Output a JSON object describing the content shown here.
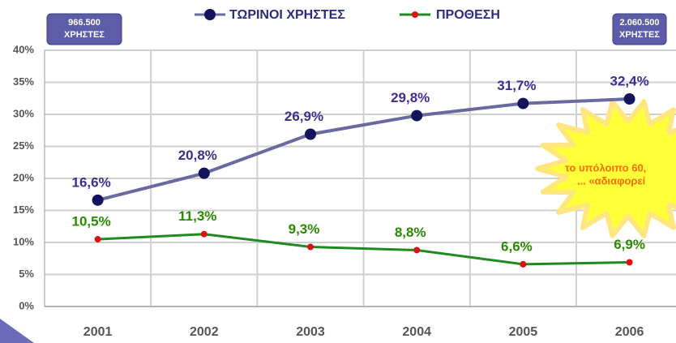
{
  "chart_data": {
    "type": "line",
    "categories": [
      "2001",
      "2002",
      "2003",
      "2004",
      "2005",
      "2006"
    ],
    "series": [
      {
        "name": "ΤΩΡΙΝΟΙ ΧΡΗΣΤΕΣ",
        "color": "#6a6aa0",
        "marker_color": "#14145e",
        "label_color": "#3b2f90",
        "values": [
          16.6,
          20.8,
          26.9,
          29.8,
          31.7,
          32.4
        ],
        "value_labels": [
          "16,6%",
          "20,8%",
          "26,9%",
          "29,8%",
          "31,7%",
          "32,4%"
        ]
      },
      {
        "name": "ΠΡΟΘΕΣΗ",
        "color": "#1f8a1f",
        "marker_color": "#e01010",
        "label_color": "#2a8a00",
        "values": [
          10.5,
          11.3,
          9.3,
          8.8,
          6.6,
          6.9
        ],
        "value_labels": [
          "10,5%",
          "11,3%",
          "9,3%",
          "8,8%",
          "6,6%",
          "6,9%"
        ]
      }
    ],
    "ylim": [
      0,
      40
    ],
    "yticks": [
      {
        "value": 0,
        "label": "0%"
      },
      {
        "value": 5,
        "label": "5%"
      },
      {
        "value": 10,
        "label": "10%"
      },
      {
        "value": 15,
        "label": "15%"
      },
      {
        "value": 20,
        "label": "20%"
      },
      {
        "value": 25,
        "label": "25%"
      },
      {
        "value": 30,
        "label": "30%"
      },
      {
        "value": 35,
        "label": "35%"
      },
      {
        "value": 40,
        "label": "40%"
      }
    ],
    "grid": true,
    "annotations": [
      {
        "lines": [
          "966.500",
          "ΧΡΗΣΤΕΣ"
        ]
      },
      {
        "lines": [
          "2.060.500",
          "ΧΡΗΣΤΕΣ"
        ]
      }
    ],
    "callout": {
      "lines": [
        "το υπόλοιπο 60,",
        "... «αδιαφορεί"
      ]
    }
  }
}
